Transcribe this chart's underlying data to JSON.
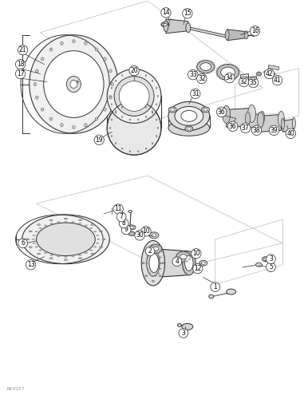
{
  "bg_color": "#ffffff",
  "lc": "#333333",
  "lc_light": "#888888",
  "fs": 5.5,
  "watermark": "RK4257",
  "figsize": [
    3.86,
    5.0
  ],
  "dpi": 100,
  "xlim": [
    0,
    386
  ],
  "ylim": [
    0,
    500
  ]
}
